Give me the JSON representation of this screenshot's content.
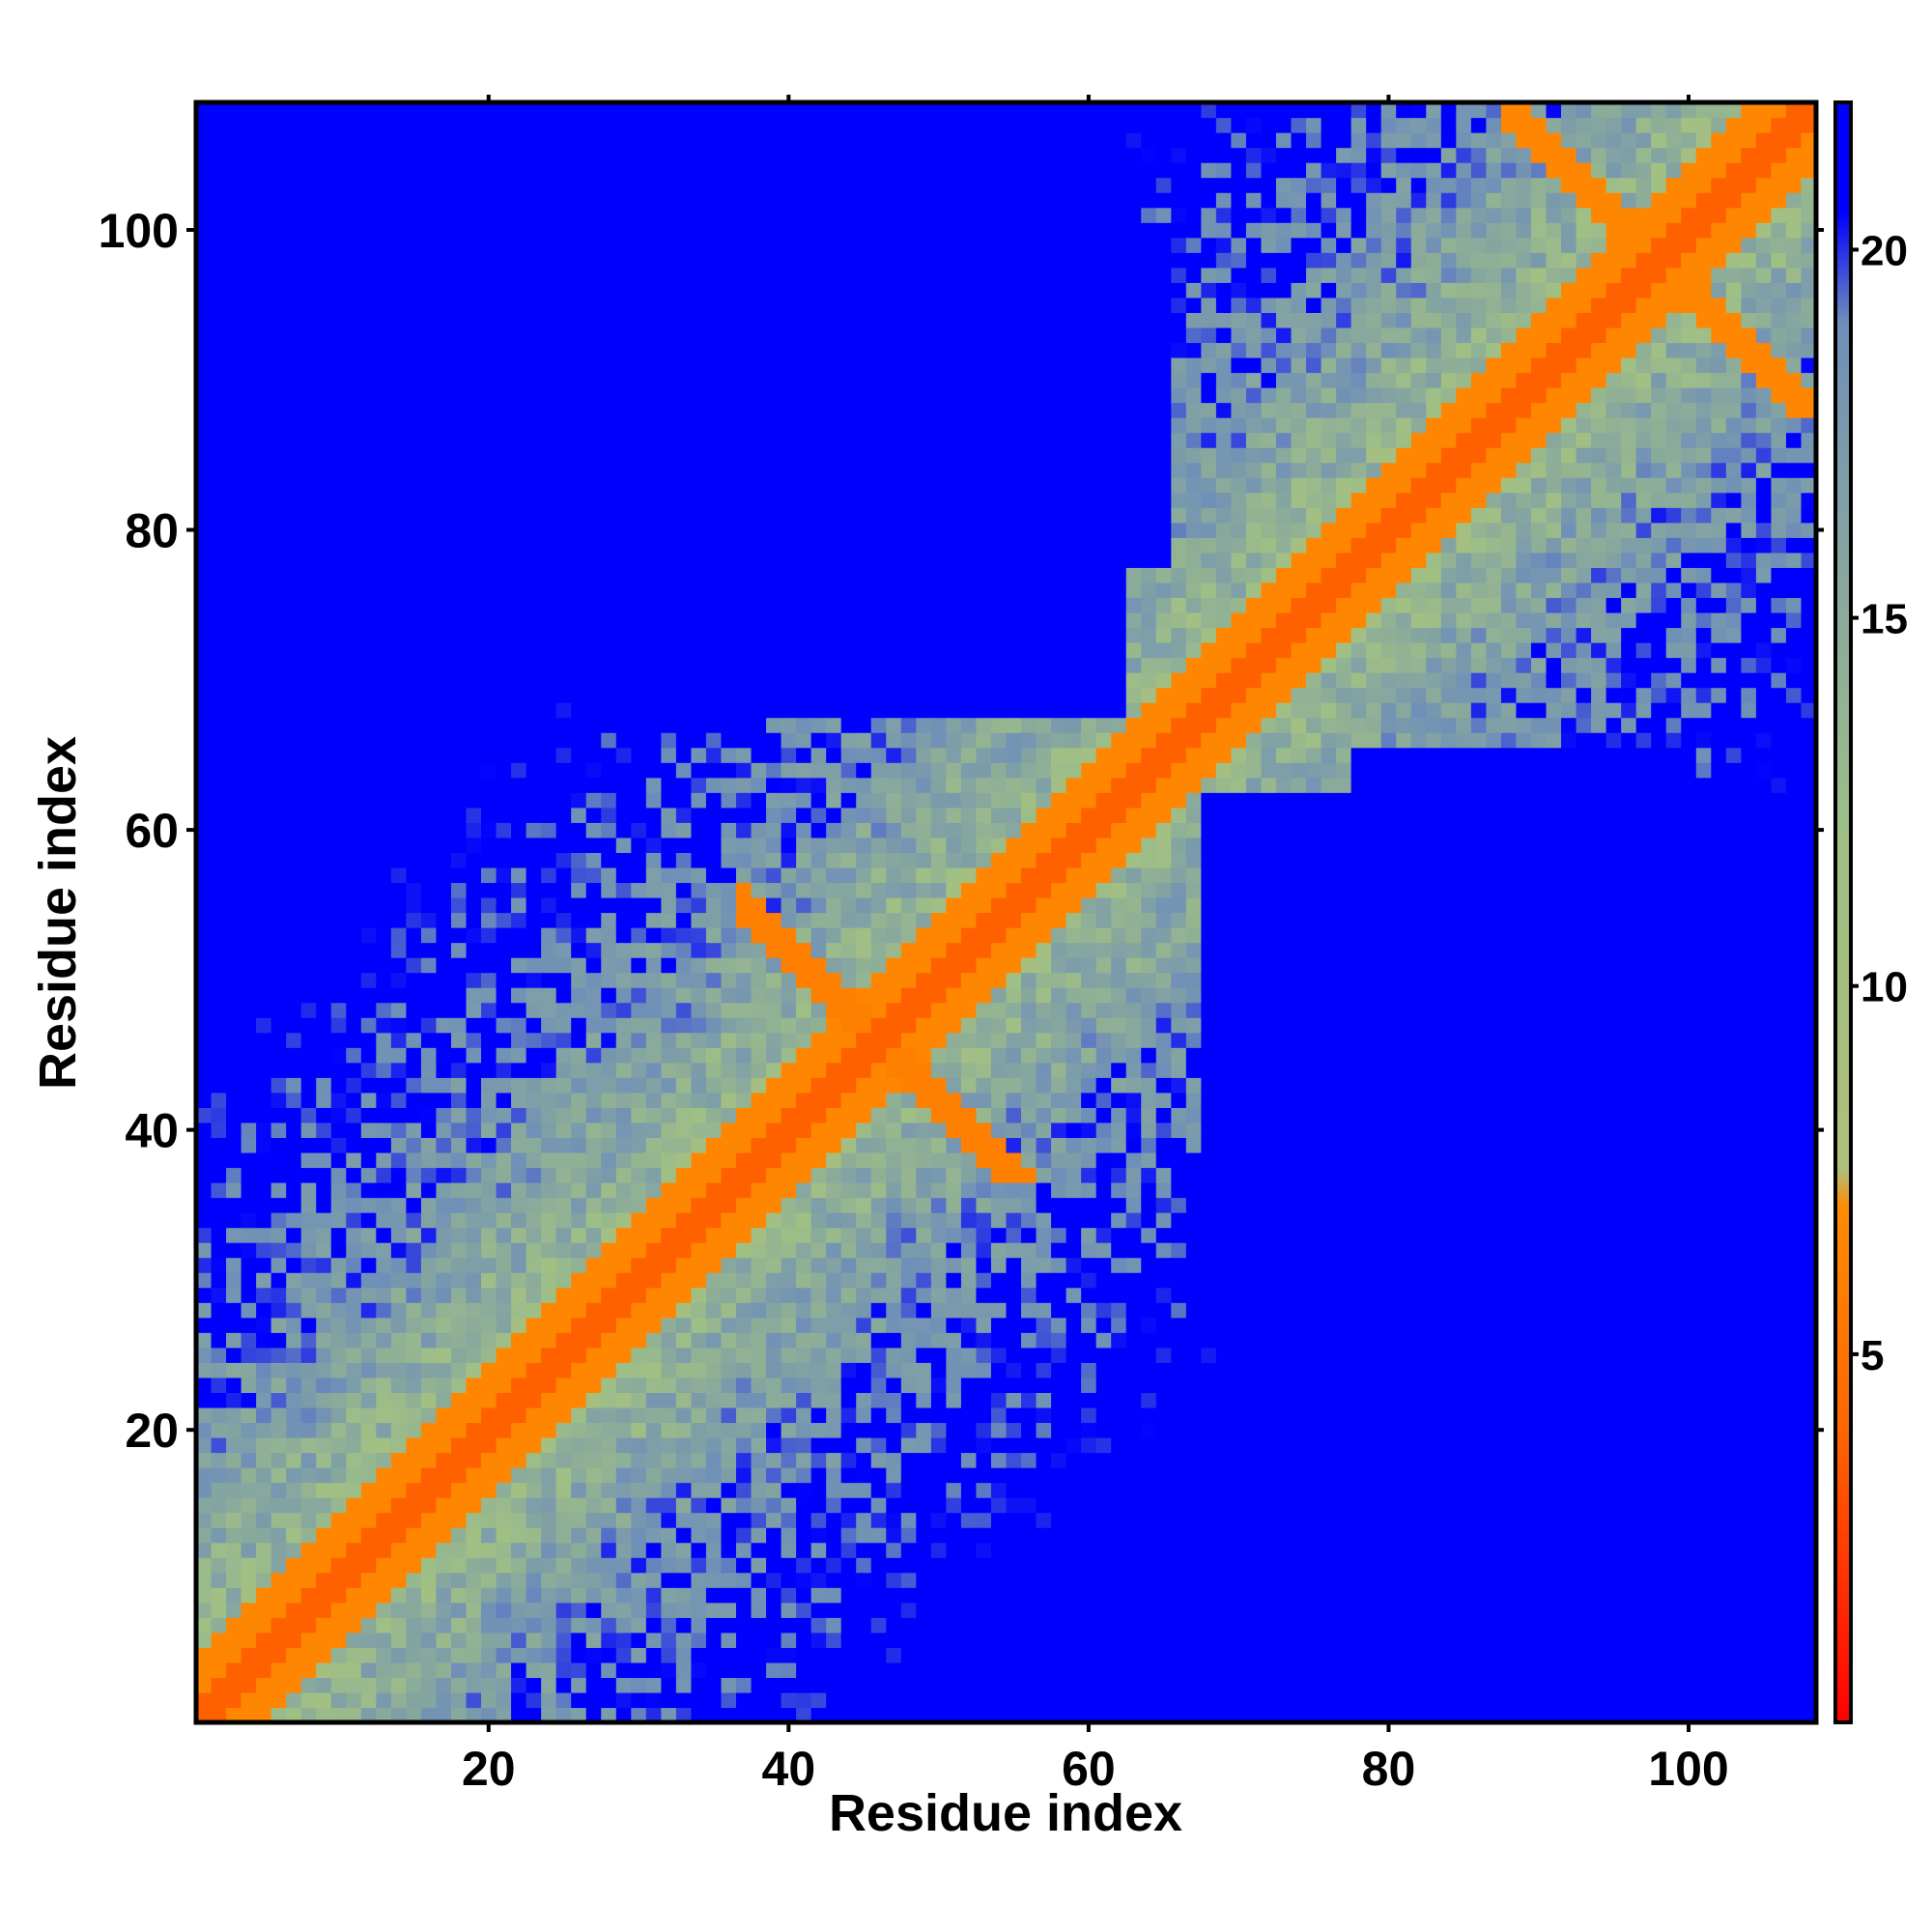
{
  "chart_data": {
    "type": "heatmap",
    "title": "",
    "xlabel": "Residue index",
    "ylabel": "Residue index",
    "n_residues": 108,
    "x_range": [
      1,
      108
    ],
    "y_range": [
      1,
      108
    ],
    "x_ticks": [
      20,
      40,
      60,
      80,
      100
    ],
    "y_ticks": [
      20,
      40,
      60,
      80,
      100
    ],
    "colorbar": {
      "ticks": [
        5,
        10,
        15,
        20
      ],
      "range": [
        0,
        22
      ],
      "colors": [
        {
          "value": 0,
          "color": "#ff0000"
        },
        {
          "value": 4,
          "color": "#ff6600"
        },
        {
          "value": 7,
          "color": "#ff8c00"
        },
        {
          "value": 7.5,
          "color": "#aebf7a"
        },
        {
          "value": 12,
          "color": "#9fbf86"
        },
        {
          "value": 19,
          "color": "#6f8fb8"
        },
        {
          "value": 20.5,
          "color": "#0000ff"
        }
      ],
      "cutoff_color": "#0000ff"
    },
    "contact_regions": [
      {
        "residues_i": [
          1,
          108
        ],
        "residues_j": [
          1,
          108
        ],
        "pattern": "diagonal",
        "distance": 3.8
      },
      {
        "residues_i": [
          41,
          58
        ],
        "residues_j": [
          37,
          48
        ],
        "pattern": "antiparallel contacts",
        "distance": 6
      },
      {
        "residues_i": [
          37,
          48
        ],
        "residues_j": [
          41,
          58
        ],
        "pattern": "antiparallel contacts",
        "distance": 6
      },
      {
        "residues_i": [
          88,
          106
        ],
        "residues_j": [
          92,
          108
        ],
        "pattern": "helix contacts",
        "distance": 6
      },
      {
        "residues_i": [
          3,
          18
        ],
        "residues_j": [
          3,
          18
        ],
        "pattern": "local contacts",
        "distance": 6
      }
    ],
    "far_regions": [
      {
        "i": [
          1,
          10
        ],
        "j": [
          95,
          108
        ]
      },
      {
        "i": [
          35,
          65
        ],
        "j": [
          78,
          100
        ]
      },
      {
        "i": [
          68,
          108
        ],
        "j": [
          30,
          62
        ]
      },
      {
        "i": [
          78,
          100
        ],
        "j": [
          15,
          35
        ]
      }
    ]
  }
}
